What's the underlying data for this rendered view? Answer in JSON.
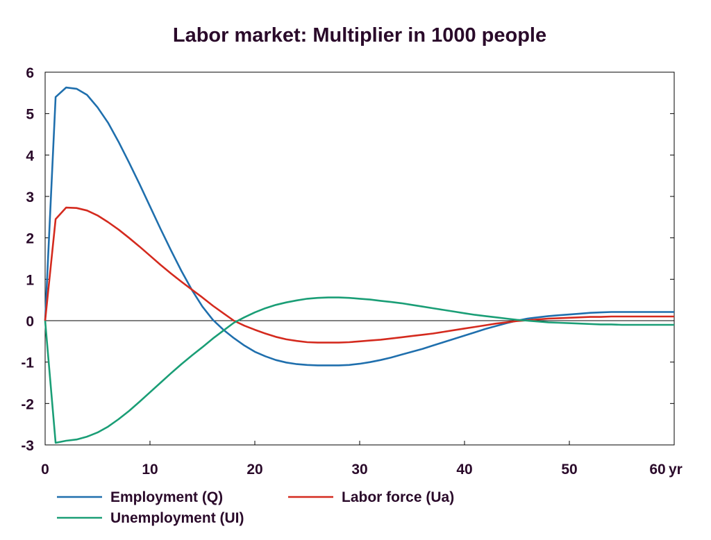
{
  "chart_data": {
    "type": "line",
    "title": "Labor market: Multiplier in 1000 people",
    "xlabel": "",
    "ylabel": "",
    "xlim": [
      0,
      60
    ],
    "ylim": [
      -3,
      6
    ],
    "x_ticks": [
      0,
      10,
      20,
      30,
      40,
      50,
      60
    ],
    "x_tick_labels": [
      "0",
      "10",
      "20",
      "30",
      "40",
      "50",
      "60"
    ],
    "x_unit": "yr",
    "y_ticks": [
      -3,
      -2,
      -1,
      0,
      1,
      2,
      3,
      4,
      5,
      6
    ],
    "y_tick_labels": [
      "-3",
      "-2",
      "-1",
      "0",
      "1",
      "2",
      "3",
      "4",
      "5",
      "6"
    ],
    "grid": false,
    "legend_position": "bottom",
    "x": [
      0,
      1,
      2,
      3,
      4,
      5,
      6,
      7,
      8,
      9,
      10,
      11,
      12,
      13,
      14,
      15,
      16,
      17,
      18,
      19,
      20,
      21,
      22,
      23,
      24,
      25,
      26,
      27,
      28,
      29,
      30,
      31,
      32,
      33,
      34,
      35,
      36,
      37,
      38,
      39,
      40,
      41,
      42,
      43,
      44,
      45,
      46,
      47,
      48,
      49,
      50,
      51,
      52,
      53,
      54,
      55,
      56,
      57,
      58,
      59,
      60
    ],
    "series": [
      {
        "name": "Employment (Q)",
        "color": "#1f6fad",
        "values": [
          0,
          5.4,
          5.63,
          5.6,
          5.45,
          5.15,
          4.78,
          4.32,
          3.82,
          3.3,
          2.76,
          2.22,
          1.7,
          1.2,
          0.74,
          0.34,
          0.02,
          -0.22,
          -0.42,
          -0.6,
          -0.75,
          -0.86,
          -0.95,
          -1.01,
          -1.05,
          -1.07,
          -1.08,
          -1.08,
          -1.08,
          -1.07,
          -1.04,
          -1.0,
          -0.95,
          -0.89,
          -0.82,
          -0.75,
          -0.68,
          -0.6,
          -0.52,
          -0.44,
          -0.36,
          -0.28,
          -0.2,
          -0.13,
          -0.06,
          0.0,
          0.05,
          0.08,
          0.11,
          0.13,
          0.15,
          0.17,
          0.19,
          0.2,
          0.21,
          0.21,
          0.21,
          0.21,
          0.21,
          0.21,
          0.21
        ]
      },
      {
        "name": "Labor force (Ua)",
        "color": "#d42a1e",
        "values": [
          0,
          2.45,
          2.73,
          2.72,
          2.66,
          2.54,
          2.38,
          2.2,
          2.0,
          1.79,
          1.57,
          1.35,
          1.14,
          0.94,
          0.75,
          0.56,
          0.36,
          0.18,
          0.0,
          -0.12,
          -0.22,
          -0.31,
          -0.39,
          -0.45,
          -0.49,
          -0.52,
          -0.53,
          -0.53,
          -0.53,
          -0.52,
          -0.5,
          -0.48,
          -0.46,
          -0.43,
          -0.4,
          -0.37,
          -0.34,
          -0.31,
          -0.27,
          -0.23,
          -0.19,
          -0.15,
          -0.11,
          -0.07,
          -0.04,
          -0.01,
          0.01,
          0.03,
          0.05,
          0.06,
          0.07,
          0.08,
          0.09,
          0.09,
          0.1,
          0.1,
          0.1,
          0.1,
          0.1,
          0.1,
          0.1
        ]
      },
      {
        "name": "Unemployment (UI)",
        "color": "#1a9e76",
        "values": [
          0,
          -2.95,
          -2.9,
          -2.87,
          -2.8,
          -2.7,
          -2.56,
          -2.38,
          -2.18,
          -1.96,
          -1.73,
          -1.5,
          -1.27,
          -1.05,
          -0.84,
          -0.64,
          -0.43,
          -0.24,
          -0.05,
          0.08,
          0.2,
          0.3,
          0.38,
          0.44,
          0.49,
          0.53,
          0.55,
          0.56,
          0.56,
          0.55,
          0.53,
          0.51,
          0.48,
          0.45,
          0.42,
          0.38,
          0.34,
          0.3,
          0.26,
          0.22,
          0.18,
          0.14,
          0.11,
          0.08,
          0.05,
          0.02,
          0.0,
          -0.02,
          -0.04,
          -0.05,
          -0.06,
          -0.07,
          -0.08,
          -0.09,
          -0.09,
          -0.1,
          -0.1,
          -0.1,
          -0.1,
          -0.1,
          -0.1
        ]
      }
    ]
  }
}
